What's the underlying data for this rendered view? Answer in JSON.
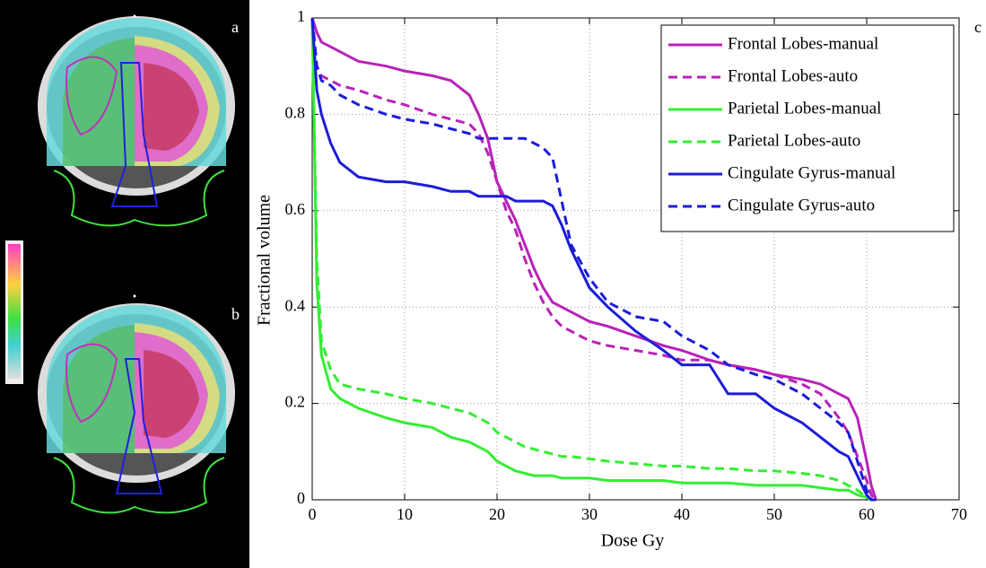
{
  "image_labels": [
    "a",
    "b"
  ],
  "chart_data": {
    "type": "line",
    "panel_label": "c",
    "xlabel": "Dose Gy",
    "ylabel": "Fractional volume",
    "xlim": [
      0,
      70
    ],
    "ylim": [
      0,
      1
    ],
    "xticks": [
      0,
      10,
      20,
      30,
      40,
      50,
      60,
      70
    ],
    "yticks": [
      0,
      0.2,
      0.4,
      0.6,
      0.8,
      1
    ],
    "grid": true,
    "legend": "upper right",
    "x": [
      0,
      0.5,
      1,
      2,
      3,
      5,
      8,
      10,
      13,
      15,
      17,
      18,
      19,
      20,
      21,
      22,
      23,
      24,
      25,
      26,
      27,
      28,
      30,
      32,
      35,
      38,
      40,
      43,
      45,
      48,
      50,
      53,
      55,
      57,
      58,
      59,
      60,
      60.5,
      61
    ],
    "series": [
      {
        "name": "Frontal Lobes-manual",
        "color": "#b822b8",
        "linestyle": "solid",
        "values": [
          1,
          0.97,
          0.95,
          0.94,
          0.93,
          0.91,
          0.9,
          0.89,
          0.88,
          0.87,
          0.84,
          0.8,
          0.75,
          0.66,
          0.62,
          0.58,
          0.53,
          0.48,
          0.44,
          0.41,
          0.4,
          0.39,
          0.37,
          0.36,
          0.34,
          0.32,
          0.31,
          0.29,
          0.28,
          0.27,
          0.26,
          0.25,
          0.24,
          0.22,
          0.21,
          0.17,
          0.08,
          0.03,
          0
        ]
      },
      {
        "name": "Frontal Lobes-auto",
        "color": "#b822b8",
        "linestyle": "dashed",
        "values": [
          1,
          0.9,
          0.88,
          0.87,
          0.86,
          0.85,
          0.83,
          0.82,
          0.8,
          0.79,
          0.78,
          0.76,
          0.72,
          0.66,
          0.6,
          0.56,
          0.5,
          0.45,
          0.41,
          0.38,
          0.36,
          0.35,
          0.33,
          0.32,
          0.31,
          0.3,
          0.29,
          0.29,
          0.28,
          0.27,
          0.26,
          0.24,
          0.22,
          0.17,
          0.14,
          0.09,
          0.04,
          0.01,
          0
        ]
      },
      {
        "name": "Parietal Lobes-manual",
        "color": "#33ee33",
        "linestyle": "solid",
        "values": [
          1,
          0.45,
          0.3,
          0.23,
          0.21,
          0.19,
          0.17,
          0.16,
          0.15,
          0.13,
          0.12,
          0.11,
          0.1,
          0.08,
          0.07,
          0.06,
          0.055,
          0.05,
          0.05,
          0.05,
          0.045,
          0.045,
          0.045,
          0.04,
          0.04,
          0.04,
          0.035,
          0.035,
          0.035,
          0.03,
          0.03,
          0.03,
          0.025,
          0.02,
          0.02,
          0.01,
          0.005,
          0,
          0
        ]
      },
      {
        "name": "Parietal Lobes-auto",
        "color": "#33ee33",
        "linestyle": "dashed",
        "values": [
          1,
          0.5,
          0.33,
          0.27,
          0.24,
          0.23,
          0.22,
          0.21,
          0.2,
          0.19,
          0.18,
          0.17,
          0.16,
          0.14,
          0.13,
          0.12,
          0.11,
          0.105,
          0.1,
          0.095,
          0.09,
          0.09,
          0.085,
          0.08,
          0.075,
          0.07,
          0.07,
          0.065,
          0.065,
          0.06,
          0.06,
          0.055,
          0.05,
          0.04,
          0.03,
          0.02,
          0.005,
          0,
          0
        ]
      },
      {
        "name": "Cingulate Gyrus-manual",
        "color": "#1c1cd8",
        "linestyle": "solid",
        "values": [
          1,
          0.85,
          0.8,
          0.74,
          0.7,
          0.67,
          0.66,
          0.66,
          0.65,
          0.64,
          0.64,
          0.63,
          0.63,
          0.63,
          0.63,
          0.62,
          0.62,
          0.62,
          0.62,
          0.61,
          0.57,
          0.52,
          0.44,
          0.4,
          0.35,
          0.31,
          0.28,
          0.28,
          0.22,
          0.22,
          0.19,
          0.16,
          0.13,
          0.1,
          0.09,
          0.05,
          0.01,
          0,
          0
        ]
      },
      {
        "name": "Cingulate Gyrus-auto",
        "color": "#1c1cd8",
        "linestyle": "dashed",
        "values": [
          1,
          0.9,
          0.87,
          0.86,
          0.84,
          0.82,
          0.8,
          0.79,
          0.78,
          0.77,
          0.76,
          0.75,
          0.75,
          0.75,
          0.75,
          0.75,
          0.75,
          0.74,
          0.73,
          0.71,
          0.62,
          0.53,
          0.46,
          0.41,
          0.38,
          0.37,
          0.34,
          0.31,
          0.28,
          0.26,
          0.25,
          0.22,
          0.19,
          0.16,
          0.14,
          0.08,
          0.02,
          0,
          0
        ]
      }
    ]
  }
}
